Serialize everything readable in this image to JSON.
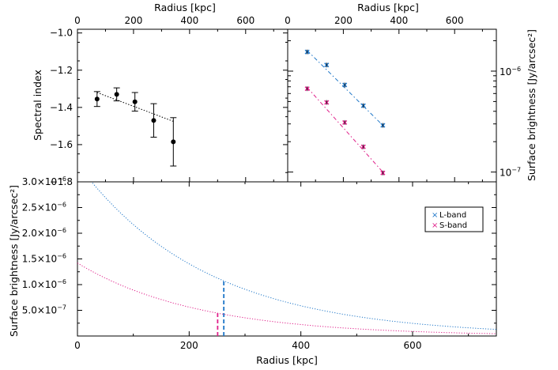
{
  "chart_data": [
    {
      "type": "scatter",
      "panel": "spectral-index",
      "xlabel": "",
      "x2label": "Radius [kpc]",
      "ylabel": "Spectral index",
      "xlim": [
        0,
        750
      ],
      "ylim": [
        -1.8,
        -0.98
      ],
      "x_ticks": [
        "0",
        "200",
        "400",
        "600"
      ],
      "y_ticks": [
        "-1.0",
        "-1.2",
        "-1.4",
        "-1.6",
        "-1.8"
      ],
      "points": {
        "x": [
          70,
          140,
          205,
          272,
          342
        ],
        "y": [
          -1.355,
          -1.33,
          -1.37,
          -1.47,
          -1.585
        ],
        "err": [
          0.04,
          0.035,
          0.05,
          0.09,
          0.13
        ]
      },
      "fit_line": {
        "x": [
          70,
          342
        ],
        "y": [
          -1.32,
          -1.475
        ]
      },
      "grid": false
    },
    {
      "type": "scatter",
      "panel": "surface-brightness-fit",
      "x2label": "Radius [kpc]",
      "ylabel": "Surface brightness [Jy/arcsec²]",
      "ylabel_side": "right",
      "yscale": "log",
      "xlim": [
        0,
        750
      ],
      "ylim": [
        8e-08,
        2.6e-06
      ],
      "x_ticks": [
        "0",
        "200",
        "400",
        "600"
      ],
      "y_ticks": [
        {
          "value": 1e-06,
          "base": "10",
          "exp": "−6"
        },
        {
          "value": 1e-07,
          "base": "10",
          "exp": "−7"
        }
      ],
      "series": [
        {
          "name": "L-band",
          "color": "#1f77c8",
          "x": [
            70,
            140,
            205,
            272,
            342
          ],
          "y": [
            1.55e-06,
            1.15e-06,
            7.3e-07,
            4.55e-07,
            2.9e-07
          ],
          "fit": [
            1.6e-06,
            2.9e-07
          ]
        },
        {
          "name": "S-band",
          "color": "#e0208a",
          "x": [
            70,
            140,
            205,
            272,
            342
          ],
          "y": [
            6.7e-07,
            4.9e-07,
            3.1e-07,
            1.78e-07,
            9.8e-08
          ],
          "fit": [
            6.9e-07,
            1e-07
          ]
        }
      ],
      "grid": false
    },
    {
      "type": "line",
      "panel": "surface-brightness-profile",
      "xlabel": "Radius [kpc]",
      "ylabel": "Surface brightness [Jy/arcsec²]",
      "xlim": [
        0,
        750
      ],
      "ylim": [
        0,
        3e-06
      ],
      "x_ticks": [
        "0",
        "200",
        "400",
        "600"
      ],
      "y_ticks": [
        {
          "value": 5e-07,
          "mant": "5.0×10",
          "exp": "−7"
        },
        {
          "value": 1e-06,
          "mant": "1.0×10",
          "exp": "−6"
        },
        {
          "value": 1.5e-06,
          "mant": "1.5×10",
          "exp": "−6"
        },
        {
          "value": 2e-06,
          "mant": "2.0×10",
          "exp": "−6"
        },
        {
          "value": 2.5e-06,
          "mant": "2.5×10",
          "exp": "−6"
        },
        {
          "value": 3e-06,
          "mant": "3.0×10",
          "exp": "−6"
        }
      ],
      "series": [
        {
          "name": "L-band",
          "color": "#1f77c8",
          "model": "exponential",
          "I0": 3.35e-06,
          "re": 230,
          "marker_r": 262
        },
        {
          "name": "S-band",
          "color": "#e0208a",
          "model": "exponential",
          "I0": 1.42e-06,
          "re": 216,
          "marker_r": 251
        }
      ],
      "legend": {
        "entries": [
          "L-band",
          "S-band"
        ],
        "marker": "×",
        "placement": "top-right"
      },
      "grid": false
    }
  ]
}
